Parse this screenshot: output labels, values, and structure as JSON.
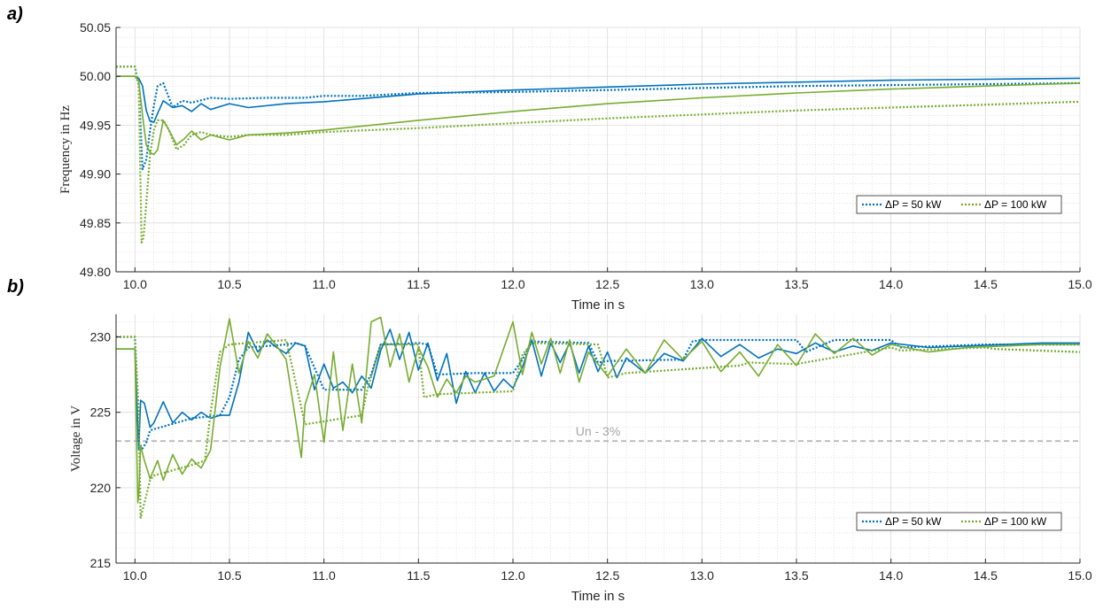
{
  "chart_data": [
    {
      "type": "line",
      "panel_label": "a)",
      "xlabel": "Time in s",
      "ylabel": "Frequency in Hz",
      "xlim": [
        9.9,
        15.0
      ],
      "ylim": [
        49.8,
        50.05
      ],
      "xticks": [
        "10.0",
        "10.5",
        "11.0",
        "11.5",
        "12.0",
        "12.5",
        "13.0",
        "13.5",
        "14.0",
        "14.5",
        "15.0"
      ],
      "yticks": [
        "49.80",
        "49.85",
        "49.90",
        "49.95",
        "50.00",
        "50.05"
      ],
      "grid": "major and minor, dotted",
      "legend": {
        "placement": "lower-right",
        "entries": [
          "ΔP = 50 kW",
          "ΔP = 100 kW"
        ]
      },
      "series": [
        {
          "name": "ΔP = 50 kW",
          "style": "solid",
          "color": "#0072bd",
          "x": [
            9.9,
            10.0,
            10.02,
            10.04,
            10.06,
            10.08,
            10.1,
            10.12,
            10.15,
            10.2,
            10.25,
            10.3,
            10.35,
            10.4,
            10.5,
            10.6,
            10.8,
            11.0,
            11.5,
            12.0,
            12.5,
            13.0,
            13.5,
            14.0,
            14.5,
            15.0
          ],
          "y": [
            50.0,
            50.0,
            49.998,
            49.99,
            49.965,
            49.954,
            49.953,
            49.962,
            49.975,
            49.968,
            49.97,
            49.964,
            49.972,
            49.966,
            49.972,
            49.968,
            49.972,
            49.974,
            49.982,
            49.986,
            49.989,
            49.992,
            49.994,
            49.996,
            49.997,
            49.998
          ]
        },
        {
          "name": "ΔP = 50 kW",
          "style": "dotted",
          "color": "#0072bd",
          "x": [
            9.9,
            10.0,
            10.02,
            10.04,
            10.06,
            10.08,
            10.1,
            10.12,
            10.15,
            10.2,
            10.25,
            10.3,
            10.4,
            10.5,
            10.7,
            10.9,
            11.0,
            11.2,
            11.5,
            12.0,
            12.5,
            13.0,
            13.5,
            14.0,
            14.5,
            15.0
          ],
          "y": [
            50.01,
            50.01,
            49.99,
            49.905,
            49.915,
            49.945,
            49.97,
            49.99,
            49.993,
            49.968,
            49.975,
            49.973,
            49.978,
            49.977,
            49.978,
            49.978,
            49.98,
            49.98,
            49.983,
            49.984,
            49.986,
            49.988,
            49.99,
            49.991,
            49.992,
            49.993
          ]
        },
        {
          "name": "ΔP = 100 kW",
          "style": "solid",
          "color": "#77ac30",
          "x": [
            9.9,
            10.0,
            10.02,
            10.04,
            10.06,
            10.08,
            10.1,
            10.12,
            10.15,
            10.18,
            10.22,
            10.26,
            10.3,
            10.35,
            10.4,
            10.5,
            10.6,
            10.8,
            11.0,
            11.5,
            12.0,
            12.5,
            13.0,
            13.5,
            14.0,
            14.5,
            15.0
          ],
          "y": [
            50.0,
            50.0,
            49.995,
            49.96,
            49.93,
            49.922,
            49.92,
            49.925,
            49.955,
            49.945,
            49.93,
            49.936,
            49.944,
            49.935,
            49.94,
            49.935,
            49.94,
            49.942,
            49.945,
            49.955,
            49.964,
            49.972,
            49.978,
            49.983,
            49.987,
            49.99,
            49.993
          ]
        },
        {
          "name": "ΔP = 100 kW",
          "style": "dotted",
          "color": "#77ac30",
          "x": [
            9.9,
            10.0,
            10.02,
            10.035,
            10.045,
            10.06,
            10.08,
            10.1,
            10.12,
            10.15,
            10.18,
            10.22,
            10.26,
            10.3,
            10.35,
            10.4,
            10.5,
            10.6,
            10.8,
            11.0,
            11.5,
            12.0,
            12.5,
            13.0,
            13.5,
            14.0,
            14.5,
            15.0
          ],
          "y": [
            50.01,
            50.01,
            49.99,
            49.83,
            49.835,
            49.87,
            49.92,
            49.945,
            49.955,
            49.955,
            49.945,
            49.925,
            49.93,
            49.94,
            49.943,
            49.94,
            49.938,
            49.94,
            49.94,
            49.943,
            49.947,
            49.952,
            49.957,
            49.961,
            49.965,
            49.968,
            49.971,
            49.974
          ]
        }
      ]
    },
    {
      "type": "line",
      "panel_label": "b)",
      "xlabel": "Time in s",
      "ylabel": "Voltage in V",
      "xlim": [
        9.9,
        15.0
      ],
      "ylim": [
        215,
        231.5
      ],
      "xticks": [
        "10.0",
        "10.5",
        "11.0",
        "11.5",
        "12.0",
        "12.5",
        "13.0",
        "13.5",
        "14.0",
        "14.5",
        "15.0"
      ],
      "yticks": [
        "215",
        "220",
        "225",
        "230"
      ],
      "grid": "major and minor, dotted",
      "reference_line": {
        "y": 223.1,
        "label": "Un - 3%",
        "color": "#a6a6a6"
      },
      "legend": {
        "placement": "lower-right",
        "entries": [
          "ΔP = 50 kW",
          "ΔP = 100 kW"
        ]
      },
      "series": [
        {
          "name": "ΔP = 50 kW",
          "style": "solid",
          "color": "#0072bd",
          "x": [
            9.9,
            10.0,
            10.02,
            10.03,
            10.05,
            10.08,
            10.1,
            10.15,
            10.2,
            10.25,
            10.3,
            10.35,
            10.4,
            10.45,
            10.5,
            10.55,
            10.6,
            10.65,
            10.7,
            10.75,
            10.8,
            10.85,
            10.9,
            10.95,
            11.0,
            11.05,
            11.1,
            11.15,
            11.2,
            11.25,
            11.3,
            11.35,
            11.4,
            11.45,
            11.5,
            11.55,
            11.6,
            11.65,
            11.7,
            11.75,
            11.8,
            11.85,
            11.9,
            11.95,
            12.0,
            12.05,
            12.1,
            12.15,
            12.2,
            12.25,
            12.3,
            12.35,
            12.4,
            12.45,
            12.5,
            12.55,
            12.6,
            12.7,
            12.8,
            12.9,
            13.0,
            13.1,
            13.2,
            13.3,
            13.4,
            13.5,
            13.6,
            13.7,
            13.8,
            13.9,
            14.0,
            14.2,
            14.4,
            14.6,
            14.8,
            15.0
          ],
          "y": [
            229.2,
            229.2,
            222.5,
            225.8,
            225.6,
            224.0,
            224.3,
            225.7,
            224.3,
            225.0,
            224.5,
            225.0,
            224.6,
            224.8,
            224.8,
            227.0,
            230.3,
            229.0,
            229.8,
            229.3,
            228.9,
            229.6,
            229.4,
            226.5,
            228.2,
            226.6,
            227.0,
            226.3,
            227.4,
            226.6,
            229.1,
            230.5,
            228.5,
            230.3,
            227.8,
            229.6,
            227.1,
            228.9,
            225.6,
            227.7,
            226.3,
            227.6,
            226.4,
            227.2,
            226.6,
            228.0,
            229.8,
            227.4,
            229.6,
            228.3,
            229.6,
            227.6,
            229.4,
            227.7,
            229.0,
            227.3,
            228.6,
            227.6,
            228.9,
            228.4,
            229.9,
            228.7,
            229.5,
            228.6,
            229.2,
            228.9,
            229.6,
            229.0,
            229.4,
            229.1,
            229.6,
            229.3,
            229.4,
            229.5,
            229.6,
            229.6
          ]
        },
        {
          "name": "ΔP = 50 kW",
          "style": "dotted",
          "color": "#0072bd",
          "x": [
            9.9,
            10.0,
            10.02,
            10.04,
            10.06,
            10.08,
            10.3,
            10.45,
            10.5,
            10.55,
            10.6,
            10.8,
            10.85,
            10.9,
            11.0,
            11.2,
            11.25,
            11.3,
            11.5,
            11.55,
            11.6,
            11.8,
            11.9,
            12.0,
            12.05,
            12.1,
            12.4,
            12.45,
            12.5,
            12.9,
            12.95,
            13.0,
            13.5,
            13.55,
            13.7,
            14.0,
            14.05,
            14.5,
            15.0
          ],
          "y": [
            230.0,
            230.0,
            223.0,
            222.6,
            223.0,
            223.8,
            224.6,
            224.8,
            226.0,
            228.5,
            229.3,
            229.5,
            229.6,
            229.4,
            226.5,
            226.5,
            227.5,
            229.5,
            229.6,
            229.5,
            227.5,
            227.6,
            227.6,
            227.6,
            228.5,
            229.7,
            229.6,
            228.3,
            228.4,
            228.5,
            229.7,
            229.8,
            229.8,
            229.0,
            229.8,
            229.8,
            229.3,
            229.5,
            229.5
          ]
        },
        {
          "name": "ΔP = 100 kW",
          "style": "solid",
          "color": "#77ac30",
          "x": [
            9.9,
            10.0,
            10.015,
            10.02,
            10.03,
            10.05,
            10.08,
            10.12,
            10.15,
            10.2,
            10.25,
            10.3,
            10.35,
            10.4,
            10.45,
            10.5,
            10.55,
            10.6,
            10.65,
            10.7,
            10.75,
            10.8,
            10.85,
            10.88,
            10.9,
            10.95,
            11.0,
            11.05,
            11.1,
            11.15,
            11.2,
            11.25,
            11.3,
            11.35,
            11.4,
            11.45,
            11.5,
            11.55,
            11.6,
            11.65,
            11.7,
            11.75,
            11.8,
            11.9,
            12.0,
            12.05,
            12.1,
            12.15,
            12.2,
            12.25,
            12.3,
            12.35,
            12.4,
            12.5,
            12.6,
            12.7,
            12.8,
            12.9,
            13.0,
            13.1,
            13.2,
            13.3,
            13.4,
            13.5,
            13.6,
            13.7,
            13.8,
            13.9,
            14.0,
            14.2,
            14.4,
            14.6,
            14.8,
            15.0
          ],
          "y": [
            229.2,
            229.2,
            219.0,
            219.5,
            222.8,
            221.8,
            220.6,
            221.8,
            220.5,
            222.2,
            220.9,
            221.9,
            221.3,
            222.5,
            228.0,
            231.2,
            227.6,
            229.7,
            228.6,
            230.2,
            229.4,
            228.5,
            224.5,
            222.0,
            225.5,
            227.5,
            223.0,
            229.0,
            223.8,
            228.2,
            224.3,
            231.0,
            231.3,
            228.0,
            230.2,
            227.0,
            229.3,
            228.0,
            226.0,
            227.2,
            226.3,
            227.4,
            227.0,
            227.4,
            231.0,
            227.5,
            230.3,
            228.2,
            229.9,
            227.6,
            229.8,
            227.0,
            229.0,
            227.4,
            229.2,
            227.6,
            229.8,
            228.5,
            229.7,
            227.7,
            229.0,
            227.4,
            229.5,
            228.1,
            230.2,
            228.9,
            229.9,
            228.8,
            229.5,
            229.0,
            229.3,
            229.4,
            229.5,
            229.5
          ]
        },
        {
          "name": "ΔP = 100 kW",
          "style": "dotted",
          "color": "#77ac30",
          "x": [
            9.9,
            10.0,
            10.02,
            10.03,
            10.05,
            10.08,
            10.1,
            10.3,
            10.37,
            10.4,
            10.45,
            10.5,
            10.8,
            10.85,
            10.9,
            11.2,
            11.23,
            11.3,
            11.5,
            11.53,
            11.6,
            12.0,
            12.05,
            12.1,
            12.45,
            12.5,
            12.6,
            13.2,
            13.25,
            13.5,
            14.0,
            14.05,
            14.5,
            14.55,
            15.0
          ],
          "y": [
            230.0,
            230.0,
            225.0,
            218.0,
            219.0,
            220.5,
            220.8,
            221.5,
            221.8,
            225.0,
            229.0,
            229.5,
            229.8,
            227.0,
            224.2,
            224.8,
            226.5,
            229.5,
            229.5,
            226.0,
            226.2,
            226.4,
            228.8,
            229.6,
            229.5,
            227.3,
            227.6,
            228.1,
            228.3,
            228.2,
            229.3,
            229.1,
            229.3,
            229.2,
            229.0
          ]
        }
      ]
    }
  ]
}
